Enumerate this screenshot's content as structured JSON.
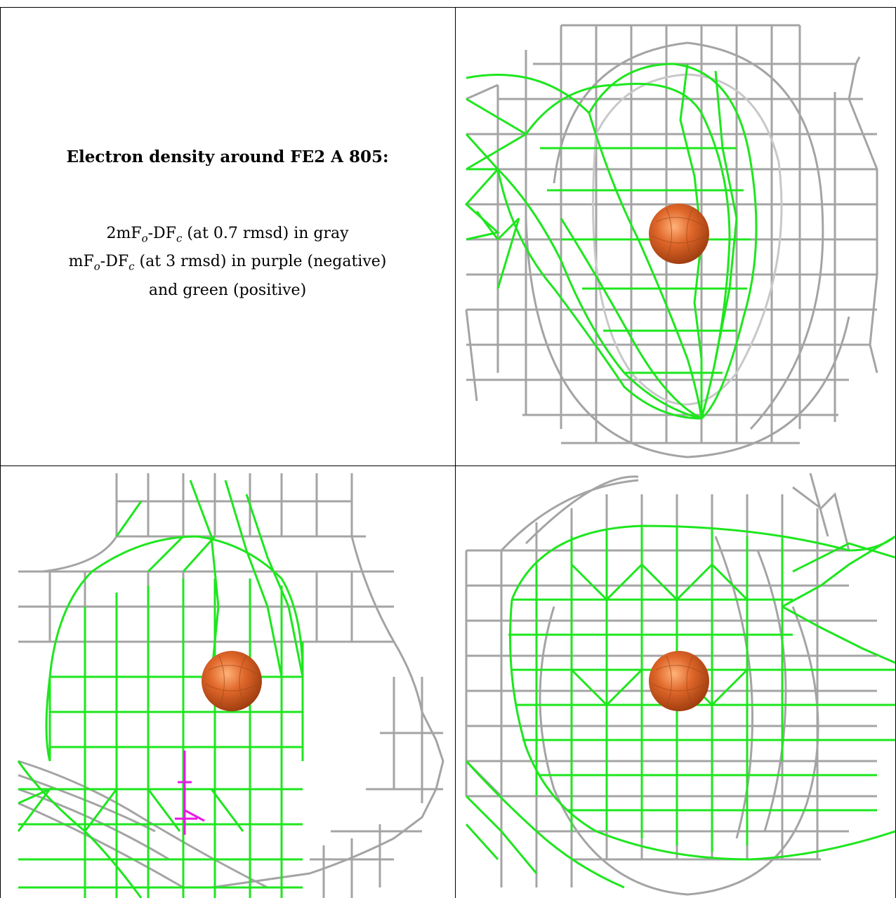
{
  "caption": {
    "title": "Electron density around FE2 A 805:",
    "line1": {
      "prefix": "2mF",
      "sub1": "o",
      "mid": "-DF",
      "sub2": "c",
      "suffix": " (at 0.7 rmsd) in gray"
    },
    "line2": {
      "prefix": "mF",
      "sub1": "o",
      "mid": "-DF",
      "sub2": "c",
      "suffix": " (at 3 rmsd) in purple (negative)"
    },
    "line3": "and green (positive)"
  },
  "colors": {
    "gray_mesh": "#9a9a9a",
    "green_mesh": "#19e619",
    "purple_mesh": "#e619e6",
    "atom": "#d9621f"
  },
  "panels": [
    {
      "name": "view-top-right",
      "atom": "FE2 A 805"
    },
    {
      "name": "view-bottom-left",
      "atom": "FE2 A 805"
    },
    {
      "name": "view-bottom-right",
      "atom": "FE2 A 805"
    }
  ]
}
